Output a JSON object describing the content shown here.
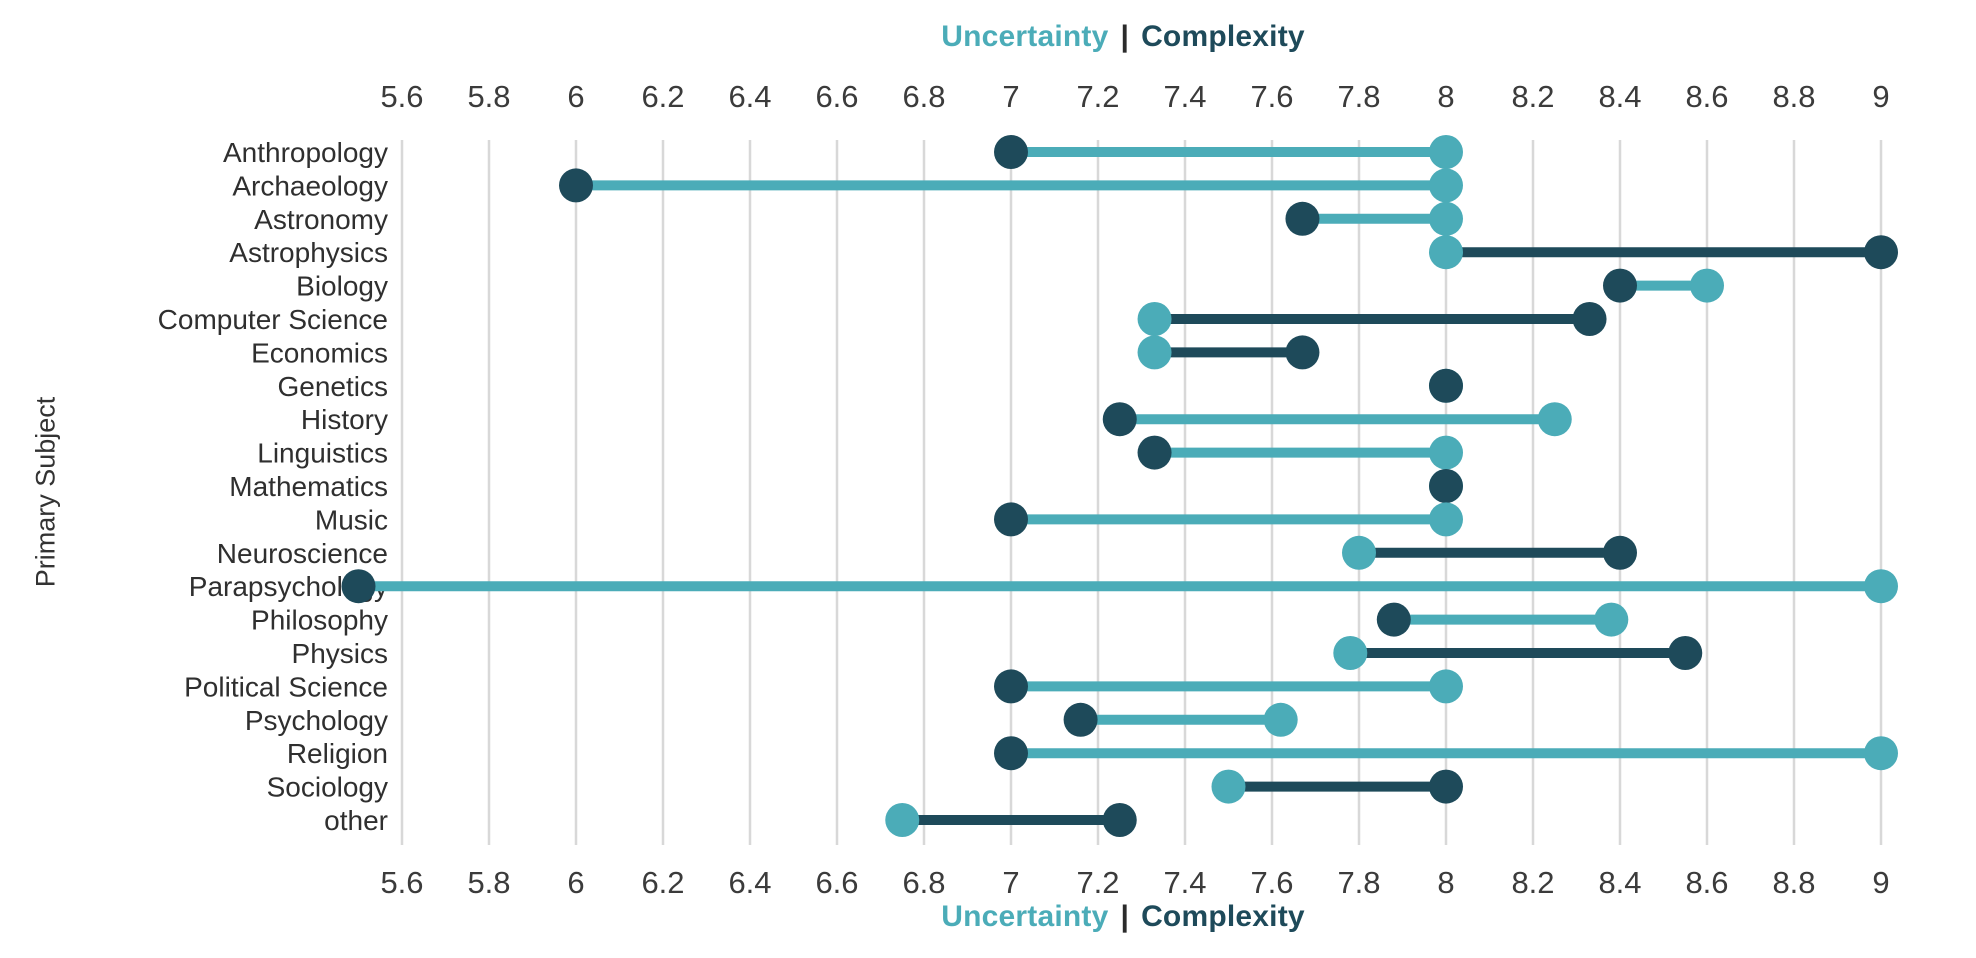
{
  "title": {
    "uncertainty": "Uncertainty",
    "divider": "|",
    "complexity": "Complexity"
  },
  "axis": {
    "y_label": "Primary Subject",
    "x_ticks": [
      "5.6",
      "5.8",
      "6",
      "6.2",
      "6.4",
      "6.6",
      "6.8",
      "7",
      "7.2",
      "7.4",
      "7.6",
      "7.8",
      "8",
      "8.2",
      "8.4",
      "8.6",
      "8.8",
      "9"
    ]
  },
  "colors": {
    "uncertainty": "#4BACB8",
    "complexity": "#1E4A5A",
    "gridline": "#D8D8D8",
    "tick_text": "#3B3B3B",
    "category_text": "#2F2F2F",
    "title_divider": "#2B2B2B"
  },
  "chart_data": {
    "type": "dumbbell",
    "title": "Uncertainty | Complexity",
    "xlabel_top": "Uncertainty | Complexity",
    "xlabel_bottom": "Uncertainty | Complexity",
    "ylabel": "Primary Subject",
    "xlim": [
      5.45,
      9.08
    ],
    "x_tick_step": 0.2,
    "grid": true,
    "legend_position": "title (color-coded words, top and bottom center)",
    "categories": [
      "Anthropology",
      "Archaeology",
      "Astronomy",
      "Astrophysics",
      "Biology",
      "Computer Science",
      "Economics",
      "Genetics",
      "History",
      "Linguistics",
      "Mathematics",
      "Music",
      "Neuroscience",
      "Parapsychology",
      "Philosophy",
      "Physics",
      "Political Science",
      "Psychology",
      "Religion",
      "Sociology",
      "other"
    ],
    "series": [
      {
        "name": "Uncertainty",
        "color": "#4BACB8",
        "values": [
          8,
          8,
          8,
          8,
          8.6,
          7.33,
          7.33,
          8,
          8.25,
          8,
          8,
          8,
          7.8,
          9,
          8.38,
          7.78,
          8,
          7.62,
          9,
          7.5,
          6.75
        ]
      },
      {
        "name": "Complexity",
        "color": "#1E4A5A",
        "values": [
          7,
          6,
          7.67,
          9,
          8.4,
          8.33,
          7.67,
          8,
          7.25,
          7.33,
          8,
          7,
          8.4,
          5.5,
          7.88,
          8.55,
          7,
          7.16,
          7,
          8,
          7.25
        ]
      }
    ],
    "connector_rule": "connecting line takes the color of the series with the larger value; equal values show only the Complexity dot"
  }
}
